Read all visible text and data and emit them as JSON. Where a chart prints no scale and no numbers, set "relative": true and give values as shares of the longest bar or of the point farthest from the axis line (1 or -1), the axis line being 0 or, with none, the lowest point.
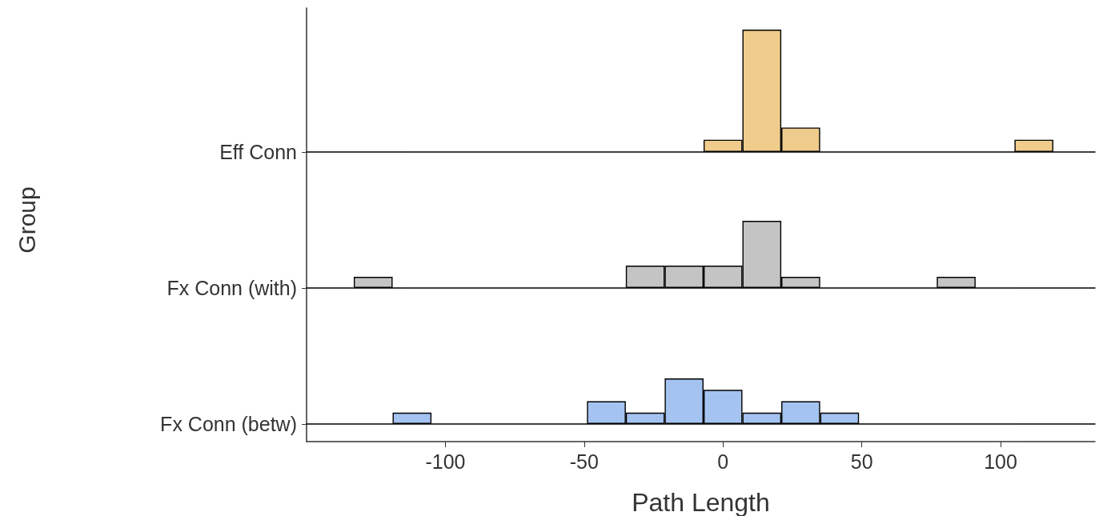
{
  "chart_data": [
    {
      "type": "bar",
      "title": "Eff Conn",
      "color": "#f0cc8c",
      "relative": true,
      "tick_labels": false,
      "xlim": [
        -150,
        134
      ],
      "x": [
        0,
        14,
        28,
        112
      ],
      "values": [
        0.1,
        1,
        0.2,
        0.1
      ]
    },
    {
      "type": "bar",
      "title": "Fx Conn (with)",
      "ylabel": "Group",
      "color": "#c4c4c4",
      "relative": true,
      "tick_labels": false,
      "xlim": [
        -150,
        134
      ],
      "x": [
        -126,
        -28,
        -14,
        0,
        14,
        28,
        84
      ],
      "values": [
        0.1667,
        0.3333,
        0.3333,
        0.3333,
        1,
        0.1667,
        0.1667
      ]
    },
    {
      "type": "bar",
      "title": "Fx Conn (betw)",
      "xlabel": "Path Length",
      "color": "#a5c3f0",
      "relative": true,
      "tick_labels": "x",
      "xlim": [
        -150,
        134
      ],
      "xticks": [
        -100,
        -50,
        0,
        50,
        100
      ],
      "x": [
        -112,
        -42,
        -28,
        -14,
        0,
        14,
        28,
        42
      ],
      "values": [
        0.25,
        0.5,
        0.25,
        1,
        0.75,
        0.25,
        0.5,
        0.25
      ]
    }
  ]
}
